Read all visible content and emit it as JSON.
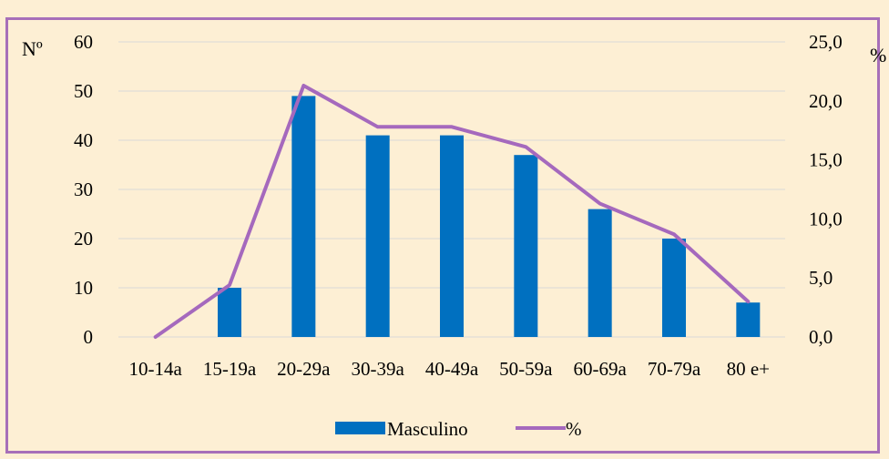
{
  "chart_data": {
    "type": "bar",
    "categories": [
      "10-14a",
      "15-19a",
      "20-29a",
      "30-39a",
      "40-49a",
      "50-59a",
      "60-69a",
      "70-79a",
      "80 e+"
    ],
    "series": [
      {
        "name": "Masculino",
        "type": "bar",
        "axis": "left",
        "color": "#0070c0",
        "values": [
          0,
          10,
          49,
          41,
          41,
          37,
          26,
          20,
          7
        ]
      },
      {
        "name": "%",
        "type": "line",
        "axis": "right",
        "color": "#a569bd",
        "values": [
          0.0,
          4.4,
          21.3,
          17.8,
          17.8,
          16.1,
          11.3,
          8.7,
          3.0
        ]
      }
    ],
    "ylabel": "Nº",
    "y2label": "%",
    "ylim": [
      0,
      60
    ],
    "y2lim": [
      0,
      25
    ],
    "yticks": [
      "0",
      "10",
      "20",
      "30",
      "40",
      "50",
      "60"
    ],
    "y2ticks": [
      "0,0",
      "5,0",
      "10,0",
      "15,0",
      "20,0",
      "25,0"
    ],
    "grid": true,
    "legend_position": "bottom"
  },
  "colors": {
    "background": "#fdefd4",
    "border": "#a76fb9",
    "grid": "#d9d9d9"
  }
}
